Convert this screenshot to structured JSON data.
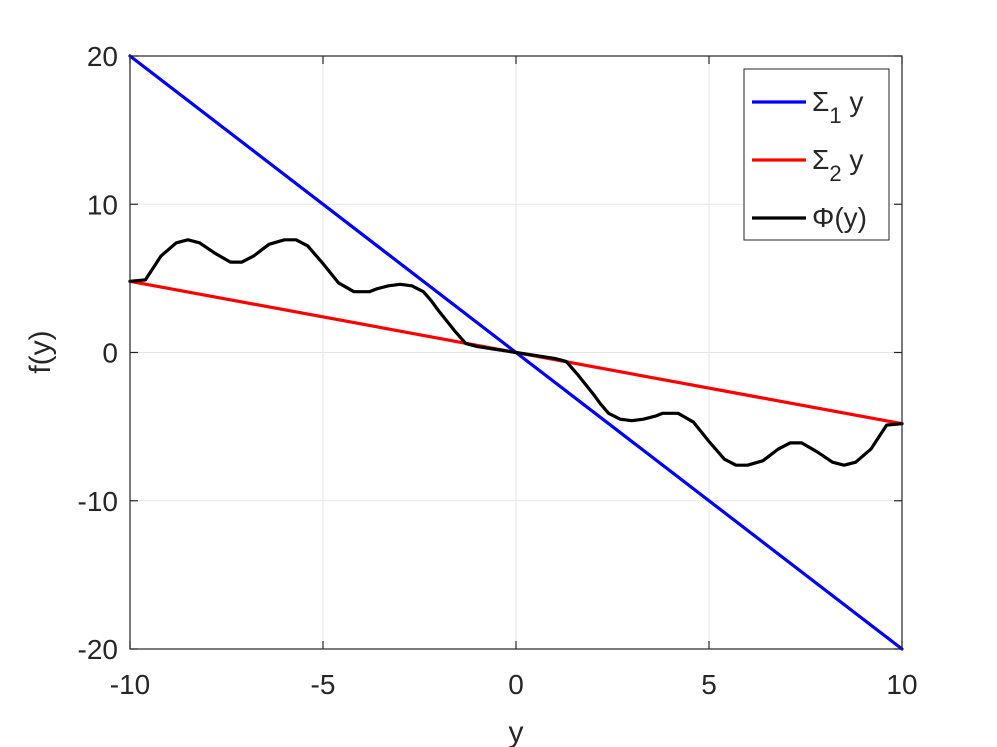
{
  "chart_data": {
    "type": "line",
    "xlabel": "y",
    "ylabel": "f(y)",
    "xlim": [
      -10,
      10
    ],
    "ylim": [
      -20,
      20
    ],
    "xticks": [
      -10,
      -5,
      0,
      5,
      10
    ],
    "yticks": [
      -20,
      -10,
      0,
      10,
      20
    ],
    "xtick_labels": [
      "-10",
      "-5",
      "0",
      "5",
      "10"
    ],
    "ytick_labels": [
      "-20",
      "-10",
      "0",
      "10",
      "20"
    ],
    "grid": true,
    "legend_position": "top-right",
    "series": [
      {
        "name_symbol": "Σ",
        "name_subscript": "1",
        "name_suffix": " y",
        "color": "#0000ff",
        "x": [
          -10,
          10
        ],
        "y": [
          20,
          -20
        ]
      },
      {
        "name_symbol": "Σ",
        "name_subscript": "2",
        "name_suffix": " y",
        "color": "#ff0000",
        "x": [
          -10,
          10
        ],
        "y": [
          4.8,
          -4.8
        ]
      },
      {
        "name_symbol": "Φ",
        "name_subscript": "",
        "name_suffix": "(y)",
        "color": "#000000",
        "x": [
          -10,
          -9.6,
          -9.2,
          -8.8,
          -8.5,
          -8.2,
          -7.8,
          -7.4,
          -7.1,
          -6.8,
          -6.4,
          -6.0,
          -5.7,
          -5.4,
          -5.0,
          -4.6,
          -4.2,
          -3.8,
          -3.6,
          -3.3,
          -3.0,
          -2.7,
          -2.4,
          -2.2,
          -2.0,
          -1.6,
          -1.3,
          -1.0,
          -0.5,
          0,
          0.5,
          1.0,
          1.3,
          1.6,
          2.0,
          2.2,
          2.4,
          2.7,
          3.0,
          3.3,
          3.6,
          3.8,
          4.2,
          4.6,
          5.0,
          5.4,
          5.7,
          6.0,
          6.4,
          6.8,
          7.1,
          7.4,
          7.8,
          8.2,
          8.5,
          8.8,
          9.2,
          9.6,
          10
        ],
        "y": [
          4.8,
          4.9,
          6.5,
          7.4,
          7.6,
          7.4,
          6.7,
          6.1,
          6.1,
          6.5,
          7.3,
          7.6,
          7.6,
          7.2,
          6.0,
          4.7,
          4.1,
          4.1,
          4.3,
          4.5,
          4.6,
          4.5,
          4.1,
          3.5,
          2.8,
          1.5,
          0.6,
          0.4,
          0.2,
          0,
          -0.2,
          -0.4,
          -0.6,
          -1.5,
          -2.8,
          -3.5,
          -4.1,
          -4.5,
          -4.6,
          -4.5,
          -4.3,
          -4.1,
          -4.1,
          -4.7,
          -6.0,
          -7.2,
          -7.6,
          -7.6,
          -7.3,
          -6.5,
          -6.1,
          -6.1,
          -6.7,
          -7.4,
          -7.6,
          -7.4,
          -6.5,
          -4.9,
          -4.8
        ]
      }
    ]
  }
}
